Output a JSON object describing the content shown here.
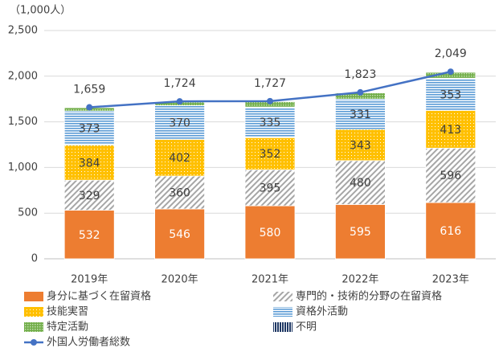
{
  "chart_data": {
    "type": "stacked-bar-line",
    "y_label": "（1,000人）",
    "categories": [
      "2019年",
      "2020年",
      "2021年",
      "2022年",
      "2023年"
    ],
    "ylim": [
      0,
      2500
    ],
    "yticks": [
      0,
      500,
      {
        "value": 1000,
        "label": "1,000"
      },
      {
        "value": 1500,
        "label": "1,500"
      },
      {
        "value": 2000,
        "label": "2,000"
      },
      {
        "value": 2500,
        "label": "2,500"
      }
    ],
    "grid": true,
    "series": [
      {
        "name": "身分に基づく在留資格",
        "color": "#ED7D31",
        "values": [
          532,
          546,
          580,
          595,
          616
        ],
        "labels": true
      },
      {
        "name": "専門的・技術的分野の在留資格",
        "color": "#A6A6A6",
        "values": [
          329,
          360,
          395,
          480,
          596
        ],
        "labels": true
      },
      {
        "name": "技能実習",
        "color": "#FFC000",
        "values": [
          384,
          402,
          352,
          343,
          413
        ],
        "labels": true
      },
      {
        "name": "資格外活動",
        "color": "#5B9BD5",
        "values": [
          373,
          370,
          335,
          331,
          353
        ],
        "labels": true
      },
      {
        "name": "特定活動",
        "color": "#70AD47",
        "values": [
          38,
          40,
          60,
          68,
          65
        ],
        "labels": false
      },
      {
        "name": "不明",
        "color": "#1F3864",
        "values": [
          3,
          6,
          5,
          6,
          6
        ],
        "labels": false
      }
    ],
    "line": {
      "name": "外国人労働者総数",
      "color": "#4472C4",
      "values": [
        1659,
        1724,
        1727,
        1823,
        2049
      ],
      "value_labels": [
        "1,659",
        "1,724",
        "1,727",
        "1,823",
        "2,049"
      ]
    }
  }
}
